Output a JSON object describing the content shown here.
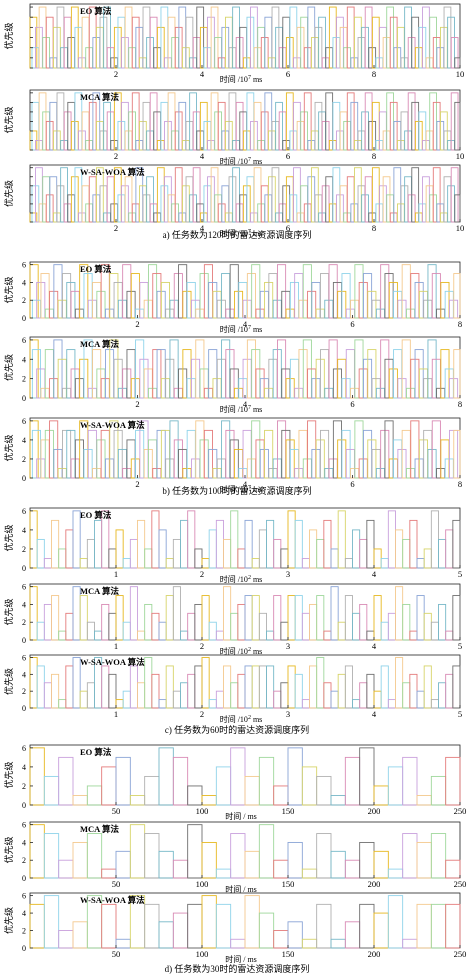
{
  "figure": {
    "ylabel": "优先级",
    "groups": [
      {
        "caption": "a)   任务数为120时的雷达资源调度序列",
        "xlabel_prefix": "时间 /10",
        "xlabel_exp": "7",
        "xlabel_suffix": " ms",
        "xmax": 10,
        "ticks": [
          "2",
          "4",
          "6",
          "8",
          "10"
        ],
        "tick_values": [
          2,
          4,
          6,
          8,
          10
        ],
        "ytick_values": [
          0,
          1,
          2,
          3,
          4,
          5,
          6
        ],
        "ytick_labels": [
          "",
          "",
          "",
          "",
          "",
          "",
          ""
        ],
        "panels": [
          "EO 算法",
          "MCA 算法",
          "W-SA-WOA 算法"
        ],
        "seg_count": 120,
        "layered": true
      },
      {
        "caption": "b)   任务数为100时的雷达资源调度序列",
        "xlabel_prefix": "时间 /10",
        "xlabel_exp": "7",
        "xlabel_suffix": " ms",
        "xmax": 8,
        "ticks": [
          "2",
          "4",
          "6",
          "8"
        ],
        "tick_values": [
          2,
          4,
          6,
          8
        ],
        "ytick_values": [
          0,
          2,
          4,
          6
        ],
        "ytick_labels": [
          "0",
          "2",
          "4",
          "6"
        ],
        "panels": [
          "EO 算法",
          "MCA 算法",
          "W-SA-WOA 算法"
        ],
        "seg_count": 100,
        "layered": true
      },
      {
        "caption": "c)   任务数为60时的雷达资源调度序列",
        "xlabel_prefix": "时间 /10",
        "xlabel_exp": "2",
        "xlabel_suffix": " ms",
        "xmax": 5,
        "ticks": [
          "1",
          "2",
          "3",
          "4",
          "5"
        ],
        "tick_values": [
          1,
          2,
          3,
          4,
          5
        ],
        "ytick_values": [
          0,
          2,
          4,
          6
        ],
        "ytick_labels": [
          "0",
          "2",
          "4",
          "6"
        ],
        "panels": [
          "EO 算法",
          "MCA 算法",
          "W-SA-WOA 算法"
        ],
        "seg_count": 60,
        "layered": false
      },
      {
        "caption": "d)   任务数为30时的雷达资源调度序列",
        "xlabel_prefix": "时间 / ms",
        "xlabel_exp": "",
        "xlabel_suffix": "",
        "xmax": 250,
        "ticks": [
          "50",
          "100",
          "150",
          "200",
          "250"
        ],
        "tick_values": [
          50,
          100,
          150,
          200,
          250
        ],
        "ytick_values": [
          0,
          2,
          4,
          6
        ],
        "ytick_labels": [
          "0",
          "2",
          "4",
          "6"
        ],
        "panels": [
          "EO 算法",
          "MCA 算法",
          "W-SA-WOA 算法"
        ],
        "seg_count": 30,
        "layered": false
      }
    ]
  },
  "palette": [
    "#e6b820",
    "#8fd3ea",
    "#c9a0dc",
    "#f4c98e",
    "#9fd79b",
    "#e47b7b",
    "#8aa4d6",
    "#d7d46a",
    "#b0b0b0",
    "#77b8c8",
    "#d98bb5",
    "#6f6f6f"
  ],
  "chart_data": [
    {
      "type": "bar",
      "title": "EO 算法",
      "xlabel": "时间 /10^7 ms",
      "ylabel": "优先级",
      "xlim": [
        0,
        10
      ],
      "ylim": [
        0,
        6
      ],
      "values": [
        5,
        2,
        4,
        6,
        3,
        5,
        1,
        4,
        6,
        2,
        5,
        3,
        6,
        4,
        1,
        5,
        2,
        6,
        3,
        4,
        5,
        6,
        2,
        1,
        4,
        5,
        3,
        6,
        2,
        5,
        4,
        1,
        6,
        3,
        5,
        2,
        4,
        6,
        1,
        5,
        3,
        4,
        6,
        2,
        5,
        1,
        3,
        6,
        4,
        2,
        5,
        6,
        3,
        1,
        4,
        5,
        2,
        6,
        3,
        4,
        1,
        5,
        6,
        2,
        4,
        3,
        5,
        1,
        6,
        4,
        2,
        5,
        3,
        6,
        1,
        4,
        5,
        2,
        6,
        3,
        4,
        5,
        1,
        2,
        6,
        3,
        5,
        4,
        2,
        6,
        1,
        5,
        3,
        4,
        6,
        2,
        5,
        1,
        4,
        3,
        6,
        5,
        2,
        4,
        1,
        6,
        3,
        5,
        2,
        4,
        6,
        1,
        5,
        3,
        2,
        4,
        6,
        5,
        3,
        1
      ]
    },
    {
      "type": "bar",
      "title": "MCA 算法",
      "xlabel": "时间 /10^7 ms",
      "ylabel": "优先级",
      "xlim": [
        0,
        10
      ],
      "ylim": [
        0,
        6
      ],
      "values": [
        2,
        5,
        1,
        6,
        4,
        3,
        5,
        2,
        6,
        1,
        4,
        5,
        3,
        6,
        2,
        4,
        1,
        5,
        6,
        3,
        2,
        5,
        4,
        1,
        6,
        3,
        5,
        2,
        4,
        6,
        1,
        3,
        5,
        2,
        6,
        4,
        1,
        5,
        3,
        6,
        2,
        4,
        5,
        1,
        3,
        6,
        4,
        2,
        5,
        3,
        1,
        6,
        4,
        5,
        2,
        3,
        6,
        1,
        5,
        4,
        2,
        6,
        3,
        5,
        1,
        4,
        6,
        2,
        3,
        5,
        4,
        1,
        6,
        2,
        5,
        3,
        4,
        6,
        1,
        2,
        5,
        4,
        3,
        6,
        1,
        5,
        2,
        4,
        3,
        6,
        5,
        1,
        2,
        4,
        6,
        3,
        5,
        1,
        4,
        2,
        6,
        5,
        3,
        1,
        4,
        2,
        6,
        5,
        3,
        4,
        1,
        2,
        6,
        5,
        3,
        4,
        2,
        1,
        6,
        5
      ]
    },
    {
      "type": "bar",
      "title": "W-SA-WOA 算法",
      "xlabel": "时间 /10^7 ms",
      "ylabel": "优先级",
      "xlim": [
        0,
        10
      ],
      "ylim": [
        0,
        6
      ],
      "values": [
        1,
        4,
        6,
        2,
        5,
        3,
        5,
        1,
        4,
        6,
        2,
        3,
        5,
        6,
        1,
        4,
        2,
        5,
        3,
        6,
        4,
        1,
        5,
        2,
        6,
        3,
        4,
        5,
        1,
        2,
        6,
        4,
        3,
        5,
        2,
        1,
        6,
        4,
        5,
        3,
        2,
        6,
        1,
        4,
        5,
        3,
        6,
        2,
        1,
        4,
        5,
        6,
        3,
        2,
        4,
        1,
        5,
        6,
        2,
        3,
        4,
        5,
        1,
        6,
        2,
        4,
        3,
        5,
        6,
        1,
        2,
        4,
        5,
        3,
        6,
        1,
        4,
        2,
        5,
        6,
        3,
        1,
        4,
        5,
        2,
        6,
        3,
        4,
        1,
        5,
        2,
        6,
        4,
        3,
        5,
        1,
        6,
        2,
        4,
        5,
        3,
        1,
        6,
        2,
        4,
        5,
        3,
        6,
        1,
        2,
        5,
        4,
        3,
        6,
        2,
        1,
        5,
        4,
        6,
        3
      ]
    },
    {
      "type": "bar",
      "title": "EO 算法",
      "xlabel": "时间 /10^7 ms",
      "ylabel": "优先级",
      "xlim": [
        0,
        8
      ],
      "ylim": [
        0,
        6
      ],
      "values": [
        6,
        2,
        4,
        5,
        1,
        3,
        6,
        2,
        5,
        4,
        3,
        1,
        6,
        5,
        2,
        4,
        3,
        6,
        1,
        5,
        4,
        2,
        6,
        3,
        5,
        1,
        4,
        2,
        6,
        5,
        3,
        4,
        1,
        2,
        5,
        6,
        3,
        4,
        2,
        1,
        5,
        6,
        4,
        3,
        2,
        5,
        1,
        6,
        3,
        4,
        2,
        5,
        6,
        1,
        3,
        4,
        5,
        2,
        6,
        3,
        1,
        4,
        5,
        2,
        6,
        3,
        4,
        1,
        5,
        2,
        6,
        4,
        3,
        5,
        1,
        2,
        6,
        4,
        5,
        3,
        2,
        1,
        6,
        5,
        4,
        3,
        2,
        6,
        1,
        5,
        4,
        3,
        2,
        6,
        5,
        1,
        4,
        3,
        2,
        5
      ]
    },
    {
      "type": "bar",
      "title": "MCA 算法",
      "xlabel": "时间 /10^7 ms",
      "ylabel": "优先级",
      "xlim": [
        0,
        8
      ],
      "ylim": [
        0,
        6
      ],
      "values": [
        6,
        5,
        3,
        1,
        5,
        2,
        6,
        4,
        1,
        5,
        3,
        2,
        4,
        6,
        1,
        5,
        3,
        2,
        5,
        6,
        4,
        1,
        3,
        5,
        2,
        6,
        4,
        3,
        1,
        5,
        5,
        2,
        4,
        6,
        1,
        3,
        5,
        2,
        4,
        6,
        3,
        1,
        5,
        2,
        4,
        6,
        5,
        3,
        1,
        2,
        4,
        6,
        5,
        3,
        2,
        1,
        4,
        5,
        6,
        3,
        2,
        4,
        1,
        5,
        6,
        3,
        2,
        4,
        5,
        1,
        6,
        3,
        4,
        2,
        5,
        1,
        6,
        3,
        4,
        5,
        2,
        1,
        6,
        4,
        3,
        5,
        2,
        6,
        1,
        4,
        5,
        3,
        2,
        6,
        4,
        1,
        5,
        3,
        2,
        5
      ]
    },
    {
      "type": "bar",
      "title": "W-SA-WOA 算法",
      "xlabel": "时间 /10^7 ms",
      "ylabel": "优先级",
      "xlim": [
        0,
        8
      ],
      "ylim": [
        0,
        6
      ],
      "values": [
        6,
        5,
        2,
        4,
        5,
        6,
        3,
        1,
        5,
        5,
        2,
        4,
        6,
        3,
        5,
        1,
        4,
        5,
        2,
        6,
        5,
        3,
        1,
        4,
        2,
        5,
        6,
        3,
        4,
        1,
        5,
        5,
        2,
        6,
        4,
        3,
        1,
        5,
        2,
        6,
        4,
        5,
        3,
        1,
        2,
        6,
        5,
        4,
        3,
        1,
        5,
        2,
        6,
        4,
        3,
        5,
        1,
        2,
        6,
        5,
        4,
        3,
        1,
        5,
        2,
        6,
        3,
        4,
        5,
        1,
        2,
        6,
        4,
        5,
        3,
        1,
        6,
        2,
        5,
        4,
        3,
        1,
        5,
        6,
        2,
        4,
        3,
        5,
        1,
        6,
        2,
        4,
        5,
        3,
        6,
        1,
        4,
        2,
        5,
        5
      ]
    },
    {
      "type": "bar",
      "title": "EO 算法",
      "xlabel": "时间 /10^2 ms",
      "ylabel": "优先级",
      "xlim": [
        0,
        5
      ],
      "ylim": [
        0,
        6
      ],
      "values": [
        6,
        3,
        1,
        5,
        2,
        4,
        6,
        1,
        3,
        5,
        6,
        2,
        4,
        1,
        3,
        5,
        2,
        6,
        4,
        1,
        3,
        5,
        6,
        2,
        1,
        4,
        5,
        3,
        6,
        2,
        5,
        1,
        4,
        5,
        3,
        2,
        6,
        5,
        1,
        4,
        3,
        5,
        2,
        6,
        1,
        4,
        3,
        5,
        2,
        1,
        6,
        4,
        3,
        5,
        1,
        2,
        6,
        3,
        4,
        5
      ]
    },
    {
      "type": "bar",
      "title": "MCA 算法",
      "xlabel": "时间 /10^2 ms",
      "ylabel": "优先级",
      "xlim": [
        0,
        5
      ],
      "ylim": [
        0,
        6
      ],
      "values": [
        6,
        2,
        4,
        5,
        1,
        3,
        6,
        5,
        2,
        1,
        4,
        3,
        5,
        2,
        6,
        1,
        4,
        3,
        2,
        5,
        6,
        1,
        3,
        4,
        5,
        2,
        1,
        6,
        3,
        4,
        5,
        5,
        3,
        1,
        5,
        2,
        5,
        5,
        3,
        4,
        5,
        1,
        6,
        2,
        5,
        3,
        4,
        1,
        5,
        2,
        3,
        6,
        4,
        1,
        5,
        3,
        2,
        4,
        1,
        5
      ]
    },
    {
      "type": "bar",
      "title": "W-SA-WOA 算法",
      "xlabel": "时间 /10^2 ms",
      "ylabel": "优先级",
      "xlim": [
        0,
        5
      ],
      "ylim": [
        0,
        6
      ],
      "values": [
        6,
        5,
        3,
        4,
        1,
        5,
        6,
        2,
        3,
        6,
        5,
        4,
        1,
        2,
        5,
        3,
        6,
        4,
        1,
        5,
        2,
        3,
        4,
        5,
        6,
        1,
        2,
        5,
        3,
        4,
        5,
        5,
        5,
        5,
        2,
        3,
        5,
        4,
        1,
        5,
        6,
        3,
        2,
        4,
        5,
        1,
        3,
        4,
        2,
        5,
        1,
        6,
        3,
        4,
        2,
        5,
        1,
        3,
        4,
        5
      ]
    },
    {
      "type": "bar",
      "title": "EO 算法",
      "xlabel": "时间 / ms",
      "ylabel": "优先级",
      "xlim": [
        0,
        250
      ],
      "ylim": [
        0,
        6
      ],
      "values": [
        6,
        3,
        5,
        1,
        2,
        4,
        5,
        1,
        3,
        6,
        5,
        2,
        1,
        4,
        6,
        3,
        5,
        2,
        6,
        4,
        3,
        1,
        5,
        6,
        2,
        4,
        5,
        1,
        3,
        5
      ]
    },
    {
      "type": "bar",
      "title": "MCA 算法",
      "xlabel": "时间 / ms",
      "ylabel": "优先级",
      "xlim": [
        0,
        250
      ],
      "ylim": [
        0,
        6
      ],
      "values": [
        6,
        5,
        2,
        4,
        5,
        1,
        3,
        6,
        5,
        3,
        2,
        6,
        4,
        1,
        5,
        3,
        6,
        2,
        4,
        1,
        5,
        3,
        2,
        4,
        3,
        1,
        5,
        4,
        5,
        2
      ]
    },
    {
      "type": "bar",
      "title": "W-SA-WOA 算法",
      "xlabel": "时间 / ms",
      "ylabel": "优先级",
      "xlim": [
        0,
        250
      ],
      "ylim": [
        0,
        6
      ],
      "values": [
        5,
        6,
        2,
        3,
        6,
        5,
        1,
        6,
        5,
        3,
        4,
        5,
        6,
        5,
        1,
        6,
        4,
        2,
        3,
        1,
        5,
        1,
        3,
        5,
        4,
        6,
        1,
        5,
        5,
        5
      ]
    }
  ]
}
